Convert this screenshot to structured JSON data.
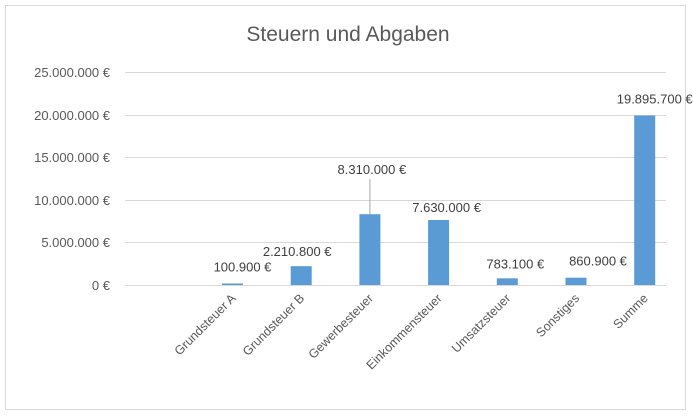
{
  "chart_data": {
    "type": "bar",
    "title": "Steuern und Abgaben",
    "xlabel": "",
    "ylabel": "",
    "ylim": [
      0,
      25000000
    ],
    "y_ticks": [
      0,
      5000000,
      10000000,
      15000000,
      20000000,
      25000000
    ],
    "y_tick_labels": [
      "0 €",
      "5.000.000 €",
      "10.000.000 €",
      "15.000.000 €",
      "20.000.000 €",
      "25.000.000 €"
    ],
    "grid": true,
    "legend": "none",
    "bar_color": "#5b9bd5",
    "categories": [
      "Grundsteuer A",
      "Grundsteuer B",
      "Gewerbesteuer",
      "Einkommensteuer",
      "Umsatzsteuer",
      "Sonstiges",
      "Summe"
    ],
    "values": [
      100900,
      2210800,
      8310000,
      7630000,
      783100,
      860900,
      19895700
    ],
    "data_labels": [
      "100.900 €",
      "2.210.800 €",
      "8.310.000 €",
      "7.630.000 €",
      "783.100 €",
      "860.900 €",
      "19.895.700 €"
    ]
  }
}
